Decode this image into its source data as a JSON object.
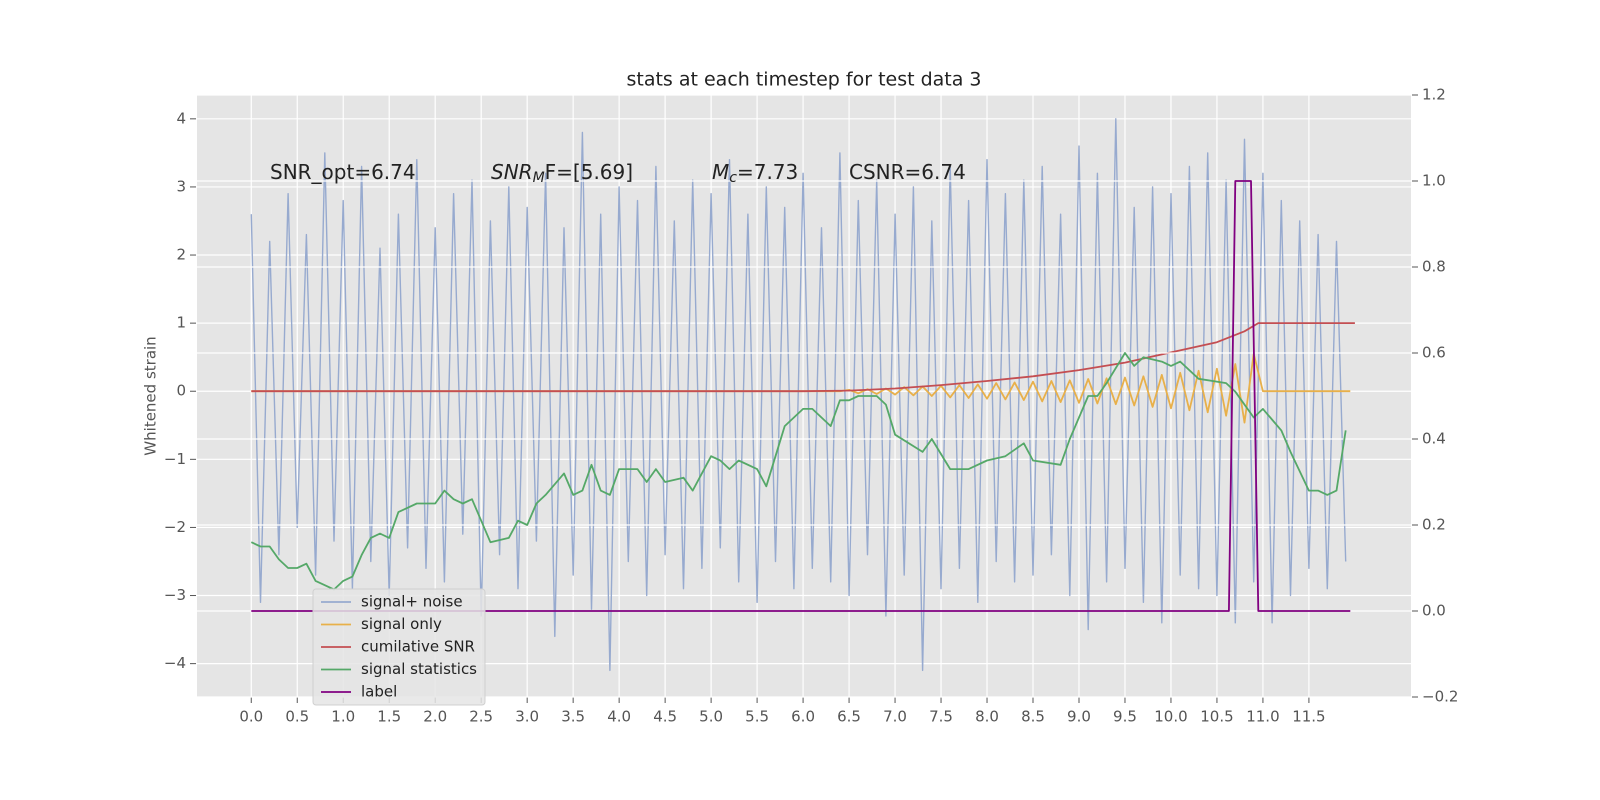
{
  "chart_data": {
    "type": "line",
    "title": "stats at each timestep for test data 3",
    "ylabel": "Whitened strain",
    "xlim": [
      -0.59,
      12.61
    ],
    "ylim": [
      -4.49,
      4.35
    ],
    "y2lim": [
      -0.2,
      1.2
    ],
    "grid": true,
    "xticks": [
      {
        "value": 0,
        "label": "0.0"
      },
      0.5,
      {
        "value": 1,
        "label": "1.0"
      },
      1.5,
      {
        "value": 2,
        "label": "2.0"
      },
      2.5,
      {
        "value": 3,
        "label": "3.0"
      },
      3.5,
      {
        "value": 4,
        "label": "4.0"
      },
      4.5,
      {
        "value": 5,
        "label": "5.0"
      },
      5.5,
      {
        "value": 6,
        "label": "6.0"
      },
      6.5,
      {
        "value": 7,
        "label": "7.0"
      },
      7.5,
      {
        "value": 8,
        "label": "8.0"
      },
      8.5,
      {
        "value": 9,
        "label": "9.0"
      },
      9.5,
      {
        "value": 10,
        "label": "10.0"
      },
      10.5,
      {
        "value": 11,
        "label": "11.0"
      },
      11.5
    ],
    "yticks": [
      {
        "value": -4,
        "label": "−4"
      },
      {
        "value": -3,
        "label": "−3"
      },
      {
        "value": -2,
        "label": "−2"
      },
      {
        "value": -1,
        "label": "−1"
      },
      0,
      1,
      2,
      3,
      4
    ],
    "y2ticks": [
      {
        "value": -0.2,
        "label": "−0.2"
      },
      {
        "value": 0,
        "label": "0.0"
      },
      0.2,
      0.4,
      0.6,
      0.8,
      {
        "value": 1,
        "label": "1.0"
      },
      1.2
    ],
    "annotations": [
      {
        "text": "SNR_opt=6.74"
      },
      {
        "main": "SNR",
        "sub": "M",
        "tail": "F=[5.69]"
      },
      {
        "main": "M",
        "sub": "c",
        "tail": "=7.73"
      },
      {
        "text": "CSNR=6.74"
      }
    ],
    "series": [
      {
        "name": "signal+ noise",
        "color": "#97aacf",
        "x": [
          0.0,
          0.1,
          0.2,
          0.3,
          0.4,
          0.5,
          0.6,
          0.7,
          0.8,
          0.9,
          1.0,
          1.1,
          1.2,
          1.3,
          1.4,
          1.5,
          1.6,
          1.7,
          1.8,
          1.9,
          2.0,
          2.1,
          2.2,
          2.3,
          2.4,
          2.5,
          2.6,
          2.7,
          2.8,
          2.9,
          3.0,
          3.1,
          3.2,
          3.3,
          3.4,
          3.5,
          3.6,
          3.7,
          3.8,
          3.9,
          4.0,
          4.1,
          4.2,
          4.3,
          4.4,
          4.5,
          4.6,
          4.7,
          4.8,
          4.9,
          5.0,
          5.1,
          5.2,
          5.3,
          5.4,
          5.5,
          5.6,
          5.7,
          5.8,
          5.9,
          6.0,
          6.1,
          6.2,
          6.3,
          6.4,
          6.5,
          6.6,
          6.7,
          6.8,
          6.9,
          7.0,
          7.1,
          7.2,
          7.3,
          7.4,
          7.5,
          7.6,
          7.7,
          7.8,
          7.9,
          8.0,
          8.1,
          8.2,
          8.3,
          8.4,
          8.5,
          8.6,
          8.7,
          8.8,
          8.9,
          9.0,
          9.1,
          9.2,
          9.3,
          9.4,
          9.5,
          9.6,
          9.7,
          9.8,
          9.9,
          10.0,
          10.1,
          10.2,
          10.3,
          10.4,
          10.5,
          10.6,
          10.7,
          10.8,
          10.9,
          11.0,
          11.1,
          11.2,
          11.3,
          11.4,
          11.5,
          11.6,
          11.7,
          11.8,
          11.9
        ],
        "values": [
          2.6,
          -3.1,
          2.2,
          -2.4,
          2.9,
          -2.0,
          2.3,
          -2.7,
          3.5,
          -2.2,
          2.8,
          -2.9,
          3.3,
          -2.5,
          2.1,
          -3.0,
          2.6,
          -2.3,
          3.4,
          -2.6,
          2.4,
          -2.8,
          2.9,
          -2.1,
          3.1,
          -3.3,
          2.5,
          -2.4,
          3.0,
          -2.9,
          2.7,
          -2.2,
          3.2,
          -3.6,
          2.4,
          -2.7,
          3.8,
          -3.2,
          2.6,
          -4.1,
          3.0,
          -2.5,
          2.8,
          -3.0,
          3.3,
          -2.4,
          2.5,
          -2.9,
          3.1,
          -2.6,
          2.9,
          -2.3,
          3.4,
          -2.8,
          2.6,
          -3.1,
          3.0,
          -2.5,
          2.7,
          -2.9,
          3.2,
          -2.6,
          2.4,
          -2.8,
          3.5,
          -3.0,
          2.8,
          -2.4,
          3.1,
          -3.3,
          2.6,
          -2.7,
          3.0,
          -4.1,
          2.5,
          -2.9,
          3.3,
          -2.6,
          2.8,
          -3.1,
          3.4,
          -2.5,
          2.9,
          -2.8,
          3.1,
          -2.7,
          3.3,
          -2.4,
          2.6,
          -3.0,
          3.6,
          -3.5,
          3.2,
          -2.8,
          4.0,
          -2.6,
          2.7,
          -3.1,
          3.0,
          -3.4,
          2.9,
          -2.7,
          3.3,
          -2.9,
          3.5,
          -3.0,
          3.1,
          -3.4,
          3.7,
          -2.8,
          3.2,
          -3.4,
          2.8,
          -3.0,
          2.5,
          -2.6,
          2.3,
          -2.9,
          2.2,
          -2.5
        ]
      },
      {
        "name": "signal only",
        "color": "#e8b04a",
        "x": [
          0.0,
          6.4,
          6.5,
          6.6,
          6.7,
          6.8,
          6.9,
          7.0,
          7.1,
          7.2,
          7.3,
          7.4,
          7.5,
          7.6,
          7.7,
          7.8,
          7.9,
          8.0,
          8.1,
          8.2,
          8.3,
          8.4,
          8.5,
          8.6,
          8.7,
          8.8,
          8.9,
          9.0,
          9.1,
          9.2,
          9.3,
          9.4,
          9.5,
          9.6,
          9.7,
          9.8,
          9.9,
          10.0,
          10.1,
          10.2,
          10.3,
          10.4,
          10.5,
          10.6,
          10.7,
          10.8,
          10.9,
          11.0,
          11.95
        ],
        "values": [
          0,
          0,
          0.02,
          -0.03,
          0.03,
          -0.04,
          0.04,
          -0.05,
          0.06,
          -0.06,
          0.07,
          -0.07,
          0.08,
          -0.09,
          0.09,
          -0.1,
          0.1,
          -0.11,
          0.12,
          -0.12,
          0.13,
          -0.13,
          0.14,
          -0.15,
          0.15,
          -0.16,
          0.16,
          -0.17,
          0.18,
          -0.18,
          0.19,
          -0.19,
          0.2,
          -0.21,
          0.22,
          -0.23,
          0.24,
          -0.25,
          0.27,
          -0.28,
          0.3,
          -0.31,
          0.33,
          -0.36,
          0.4,
          -0.46,
          0.55,
          0,
          0
        ]
      },
      {
        "name": "cumilative SNR",
        "color": "#c44e52",
        "x": [
          0.0,
          6.0,
          6.5,
          7.0,
          7.5,
          8.0,
          8.5,
          9.0,
          9.5,
          10.0,
          10.5,
          10.8,
          10.95,
          12.0
        ],
        "values": [
          0,
          0,
          0.01,
          0.04,
          0.09,
          0.15,
          0.22,
          0.31,
          0.42,
          0.57,
          0.72,
          0.88,
          1.0,
          1.0
        ]
      },
      {
        "name": "signal statistics",
        "color": "#55a868",
        "axis": "y2",
        "x": [
          0.0,
          0.1,
          0.2,
          0.3,
          0.4,
          0.5,
          0.6,
          0.7,
          0.8,
          0.9,
          1.0,
          1.1,
          1.2,
          1.3,
          1.4,
          1.5,
          1.6,
          1.8,
          2.0,
          2.1,
          2.2,
          2.3,
          2.4,
          2.5,
          2.6,
          2.8,
          2.9,
          3.0,
          3.1,
          3.2,
          3.4,
          3.5,
          3.6,
          3.7,
          3.8,
          3.9,
          4.0,
          4.2,
          4.3,
          4.4,
          4.5,
          4.7,
          4.8,
          5.0,
          5.1,
          5.2,
          5.3,
          5.5,
          5.6,
          5.7,
          5.8,
          6.0,
          6.1,
          6.3,
          6.4,
          6.5,
          6.6,
          6.8,
          6.9,
          7.0,
          7.3,
          7.4,
          7.6,
          7.8,
          8.0,
          8.2,
          8.4,
          8.5,
          8.8,
          8.9,
          9.1,
          9.2,
          9.3,
          9.5,
          9.6,
          9.7,
          9.9,
          10.0,
          10.1,
          10.3,
          10.6,
          10.7,
          10.9,
          11.0,
          11.2,
          11.3,
          11.5,
          11.6,
          11.7,
          11.8,
          11.9
        ],
        "values": [
          0.16,
          0.15,
          0.15,
          0.12,
          0.1,
          0.1,
          0.11,
          0.07,
          0.06,
          0.05,
          0.07,
          0.08,
          0.13,
          0.17,
          0.18,
          0.17,
          0.23,
          0.25,
          0.25,
          0.28,
          0.26,
          0.25,
          0.26,
          0.21,
          0.16,
          0.17,
          0.21,
          0.2,
          0.25,
          0.27,
          0.32,
          0.27,
          0.28,
          0.34,
          0.28,
          0.27,
          0.33,
          0.33,
          0.3,
          0.33,
          0.3,
          0.31,
          0.28,
          0.36,
          0.35,
          0.33,
          0.35,
          0.33,
          0.29,
          0.36,
          0.43,
          0.47,
          0.47,
          0.43,
          0.49,
          0.49,
          0.5,
          0.5,
          0.48,
          0.41,
          0.37,
          0.4,
          0.33,
          0.33,
          0.35,
          0.36,
          0.39,
          0.35,
          0.34,
          0.4,
          0.5,
          0.5,
          0.53,
          0.6,
          0.57,
          0.59,
          0.58,
          0.57,
          0.58,
          0.54,
          0.53,
          0.51,
          0.45,
          0.47,
          0.42,
          0.37,
          0.28,
          0.28,
          0.27,
          0.28,
          0.42
        ]
      },
      {
        "name": "label",
        "color": "#800080",
        "axis": "y2",
        "x": [
          0.0,
          10.63,
          10.7,
          10.87,
          10.95,
          11.95
        ],
        "values": [
          0,
          0,
          1,
          1,
          0,
          0
        ]
      }
    ]
  }
}
